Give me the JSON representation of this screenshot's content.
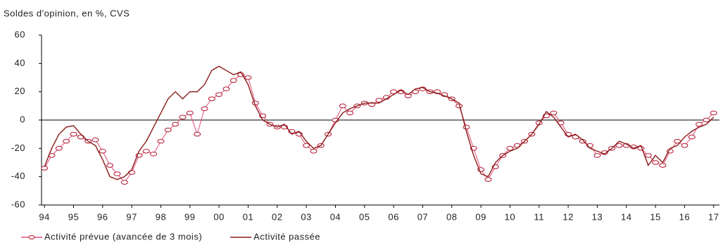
{
  "chart_data": {
    "type": "line",
    "title": "Soldes d'opinion, en %, CVS",
    "x": [
      1994,
      1994.25,
      1994.5,
      1994.75,
      1995,
      1995.25,
      1995.5,
      1995.75,
      1996,
      1996.25,
      1996.5,
      1996.75,
      1997,
      1997.25,
      1997.5,
      1997.75,
      1998,
      1998.25,
      1998.5,
      1998.75,
      1999,
      1999.25,
      1999.5,
      1999.75,
      2000,
      2000.25,
      2000.5,
      2000.75,
      2001,
      2001.25,
      2001.5,
      2001.75,
      2002,
      2002.25,
      2002.5,
      2002.75,
      2003,
      2003.25,
      2003.5,
      2003.75,
      2004,
      2004.25,
      2004.5,
      2004.75,
      2005,
      2005.25,
      2005.5,
      2005.75,
      2006,
      2006.25,
      2006.5,
      2006.75,
      2007,
      2007.25,
      2007.5,
      2007.75,
      2008,
      2008.25,
      2008.5,
      2008.75,
      2009,
      2009.25,
      2009.5,
      2009.75,
      2010,
      2010.25,
      2010.5,
      2010.75,
      2011,
      2011.25,
      2011.5,
      2011.75,
      2012,
      2012.25,
      2012.5,
      2012.75,
      2013,
      2013.25,
      2013.5,
      2013.75,
      2014,
      2014.25,
      2014.5,
      2014.75,
      2015,
      2015.25,
      2015.5,
      2015.75,
      2016,
      2016.25,
      2016.5,
      2016.75,
      2017
    ],
    "series": [
      {
        "name": "Activité prévue (avancée de 3 mois)",
        "color": "#e0507a",
        "marker_color": "#b0102a",
        "markers": true,
        "values": [
          -34,
          -25,
          -20,
          -15,
          -10,
          -12,
          -15,
          -14,
          -22,
          -32,
          -38,
          -44,
          -37,
          -25,
          -22,
          -24,
          -15,
          -7,
          -3,
          2,
          5,
          -10,
          8,
          15,
          18,
          22,
          28,
          32,
          30,
          12,
          3,
          -3,
          -5,
          -5,
          -8,
          -10,
          -18,
          -22,
          -18,
          -10,
          0,
          10,
          5,
          10,
          12,
          11,
          14,
          16,
          20,
          20,
          17,
          20,
          22,
          20,
          20,
          18,
          15,
          10,
          -5,
          -20,
          -35,
          -42,
          -33,
          -25,
          -20,
          -18,
          -15,
          -10,
          -2,
          3,
          5,
          -2,
          -10,
          -12,
          -15,
          -18,
          -25,
          -23,
          -20,
          -18,
          -18,
          -19,
          -20,
          -25,
          -30,
          -32,
          -22,
          -15,
          -18,
          -12,
          -3,
          0,
          5
        ]
      },
      {
        "name": "Activité passée",
        "color": "#8b1a1a",
        "markers": false,
        "values": [
          -33,
          -20,
          -10,
          -5,
          -4,
          -10,
          -15,
          -18,
          -28,
          -40,
          -42,
          -40,
          -35,
          -22,
          -15,
          -5,
          5,
          15,
          20,
          15,
          20,
          20,
          25,
          35,
          38,
          35,
          32,
          34,
          25,
          10,
          0,
          -3,
          -5,
          -3,
          -10,
          -8,
          -15,
          -20,
          -18,
          -10,
          -2,
          5,
          8,
          10,
          12,
          12,
          12,
          15,
          18,
          21,
          18,
          22,
          23,
          20,
          19,
          17,
          15,
          12,
          -8,
          -25,
          -38,
          -40,
          -30,
          -25,
          -22,
          -20,
          -15,
          -10,
          -3,
          6,
          2,
          -5,
          -12,
          -10,
          -14,
          -20,
          -22,
          -24,
          -20,
          -15,
          -17,
          -20,
          -18,
          -32,
          -25,
          -30,
          -20,
          -18,
          -12,
          -8,
          -5,
          -3,
          2
        ]
      }
    ],
    "xlim": [
      1993.9,
      2017.2
    ],
    "xticks": [
      {
        "value": 1994,
        "label": "94"
      },
      {
        "value": 1995,
        "label": "95"
      },
      {
        "value": 1996,
        "label": "96"
      },
      {
        "value": 1997,
        "label": "97"
      },
      {
        "value": 1998,
        "label": "98"
      },
      {
        "value": 1999,
        "label": "99"
      },
      {
        "value": 2000,
        "label": "00"
      },
      {
        "value": 2001,
        "label": "01"
      },
      {
        "value": 2002,
        "label": "02"
      },
      {
        "value": 2003,
        "label": "03"
      },
      {
        "value": 2004,
        "label": "04"
      },
      {
        "value": 2005,
        "label": "05"
      },
      {
        "value": 2006,
        "label": "06"
      },
      {
        "value": 2007,
        "label": "07"
      },
      {
        "value": 2008,
        "label": "08"
      },
      {
        "value": 2009,
        "label": "09"
      },
      {
        "value": 2010,
        "label": "10"
      },
      {
        "value": 2011,
        "label": "11"
      },
      {
        "value": 2012,
        "label": "12"
      },
      {
        "value": 2013,
        "label": "13"
      },
      {
        "value": 2014,
        "label": "14"
      },
      {
        "value": 2015,
        "label": "15"
      },
      {
        "value": 2016,
        "label": "16"
      },
      {
        "value": 2017,
        "label": "17"
      }
    ],
    "ylim": [
      -60,
      60
    ],
    "yticks": [
      -60,
      -40,
      -20,
      0,
      20,
      40,
      60
    ]
  }
}
